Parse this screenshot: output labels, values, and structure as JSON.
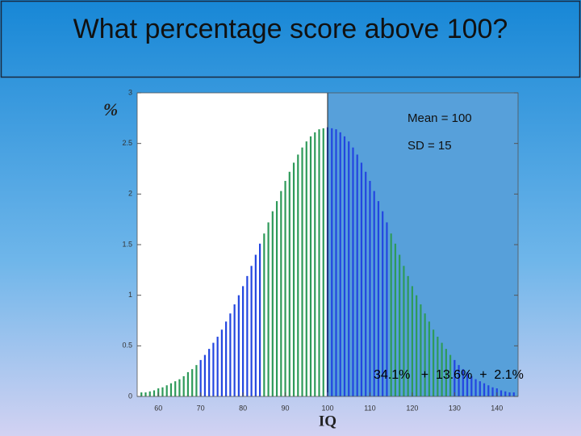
{
  "chart_data": {
    "type": "bar",
    "title": "What percentage score above 100?",
    "xlabel": "IQ",
    "ylabel": "%",
    "annotations": [
      "Mean = 100",
      "SD = 15",
      "34.1%   +  13.6%  +  2.1%"
    ],
    "highlight_from": 100,
    "xlim": [
      55,
      145
    ],
    "xticks": [
      60,
      70,
      80,
      90,
      100,
      110,
      120,
      130,
      140
    ],
    "ylim": [
      0,
      3
    ],
    "yticks": [
      0,
      0.5,
      1,
      1.5,
      2,
      2.5,
      3
    ],
    "series": [
      {
        "color": "#2e9a5a",
        "x": [
          56,
          57,
          58,
          59,
          60,
          61,
          62,
          63,
          64,
          65,
          66,
          67,
          68,
          69
        ],
        "values": [
          0.04,
          0.04,
          0.05,
          0.06,
          0.08,
          0.09,
          0.11,
          0.13,
          0.15,
          0.17,
          0.2,
          0.24,
          0.27,
          0.31
        ]
      },
      {
        "color": "#2346e0",
        "x": [
          70,
          71,
          72,
          73,
          74,
          75,
          76,
          77,
          78,
          79,
          80,
          81,
          82,
          83,
          84
        ],
        "values": [
          0.36,
          0.41,
          0.47,
          0.53,
          0.59,
          0.66,
          0.74,
          0.82,
          0.91,
          1.0,
          1.09,
          1.19,
          1.29,
          1.4,
          1.51
        ]
      },
      {
        "color": "#2e9a5a",
        "x": [
          85,
          86,
          87,
          88,
          89,
          90,
          91,
          92,
          93,
          94,
          95,
          96,
          97,
          98,
          99
        ],
        "values": [
          1.61,
          1.72,
          1.83,
          1.93,
          2.03,
          2.13,
          2.22,
          2.31,
          2.39,
          2.46,
          2.52,
          2.57,
          2.61,
          2.64,
          2.65
        ]
      },
      {
        "color": "#2346e0",
        "x": [
          100,
          101,
          102,
          103,
          104,
          105,
          106,
          107,
          108,
          109,
          110,
          111,
          112,
          113,
          114
        ],
        "values": [
          2.66,
          2.65,
          2.64,
          2.61,
          2.57,
          2.52,
          2.46,
          2.39,
          2.31,
          2.22,
          2.13,
          2.03,
          1.93,
          1.83,
          1.72
        ]
      },
      {
        "color": "#2e9a5a",
        "x": [
          115,
          116,
          117,
          118,
          119,
          120,
          121,
          122,
          123,
          124,
          125,
          126,
          127,
          128,
          129
        ],
        "values": [
          1.61,
          1.51,
          1.4,
          1.29,
          1.19,
          1.09,
          1.0,
          0.91,
          0.82,
          0.74,
          0.66,
          0.59,
          0.53,
          0.47,
          0.41
        ]
      },
      {
        "color": "#2346e0",
        "x": [
          130,
          131,
          132,
          133,
          134,
          135,
          136,
          137,
          138,
          139,
          140,
          141,
          142,
          143,
          144
        ],
        "values": [
          0.36,
          0.31,
          0.27,
          0.24,
          0.2,
          0.17,
          0.15,
          0.13,
          0.11,
          0.09,
          0.08,
          0.06,
          0.05,
          0.04,
          0.04
        ]
      }
    ]
  }
}
